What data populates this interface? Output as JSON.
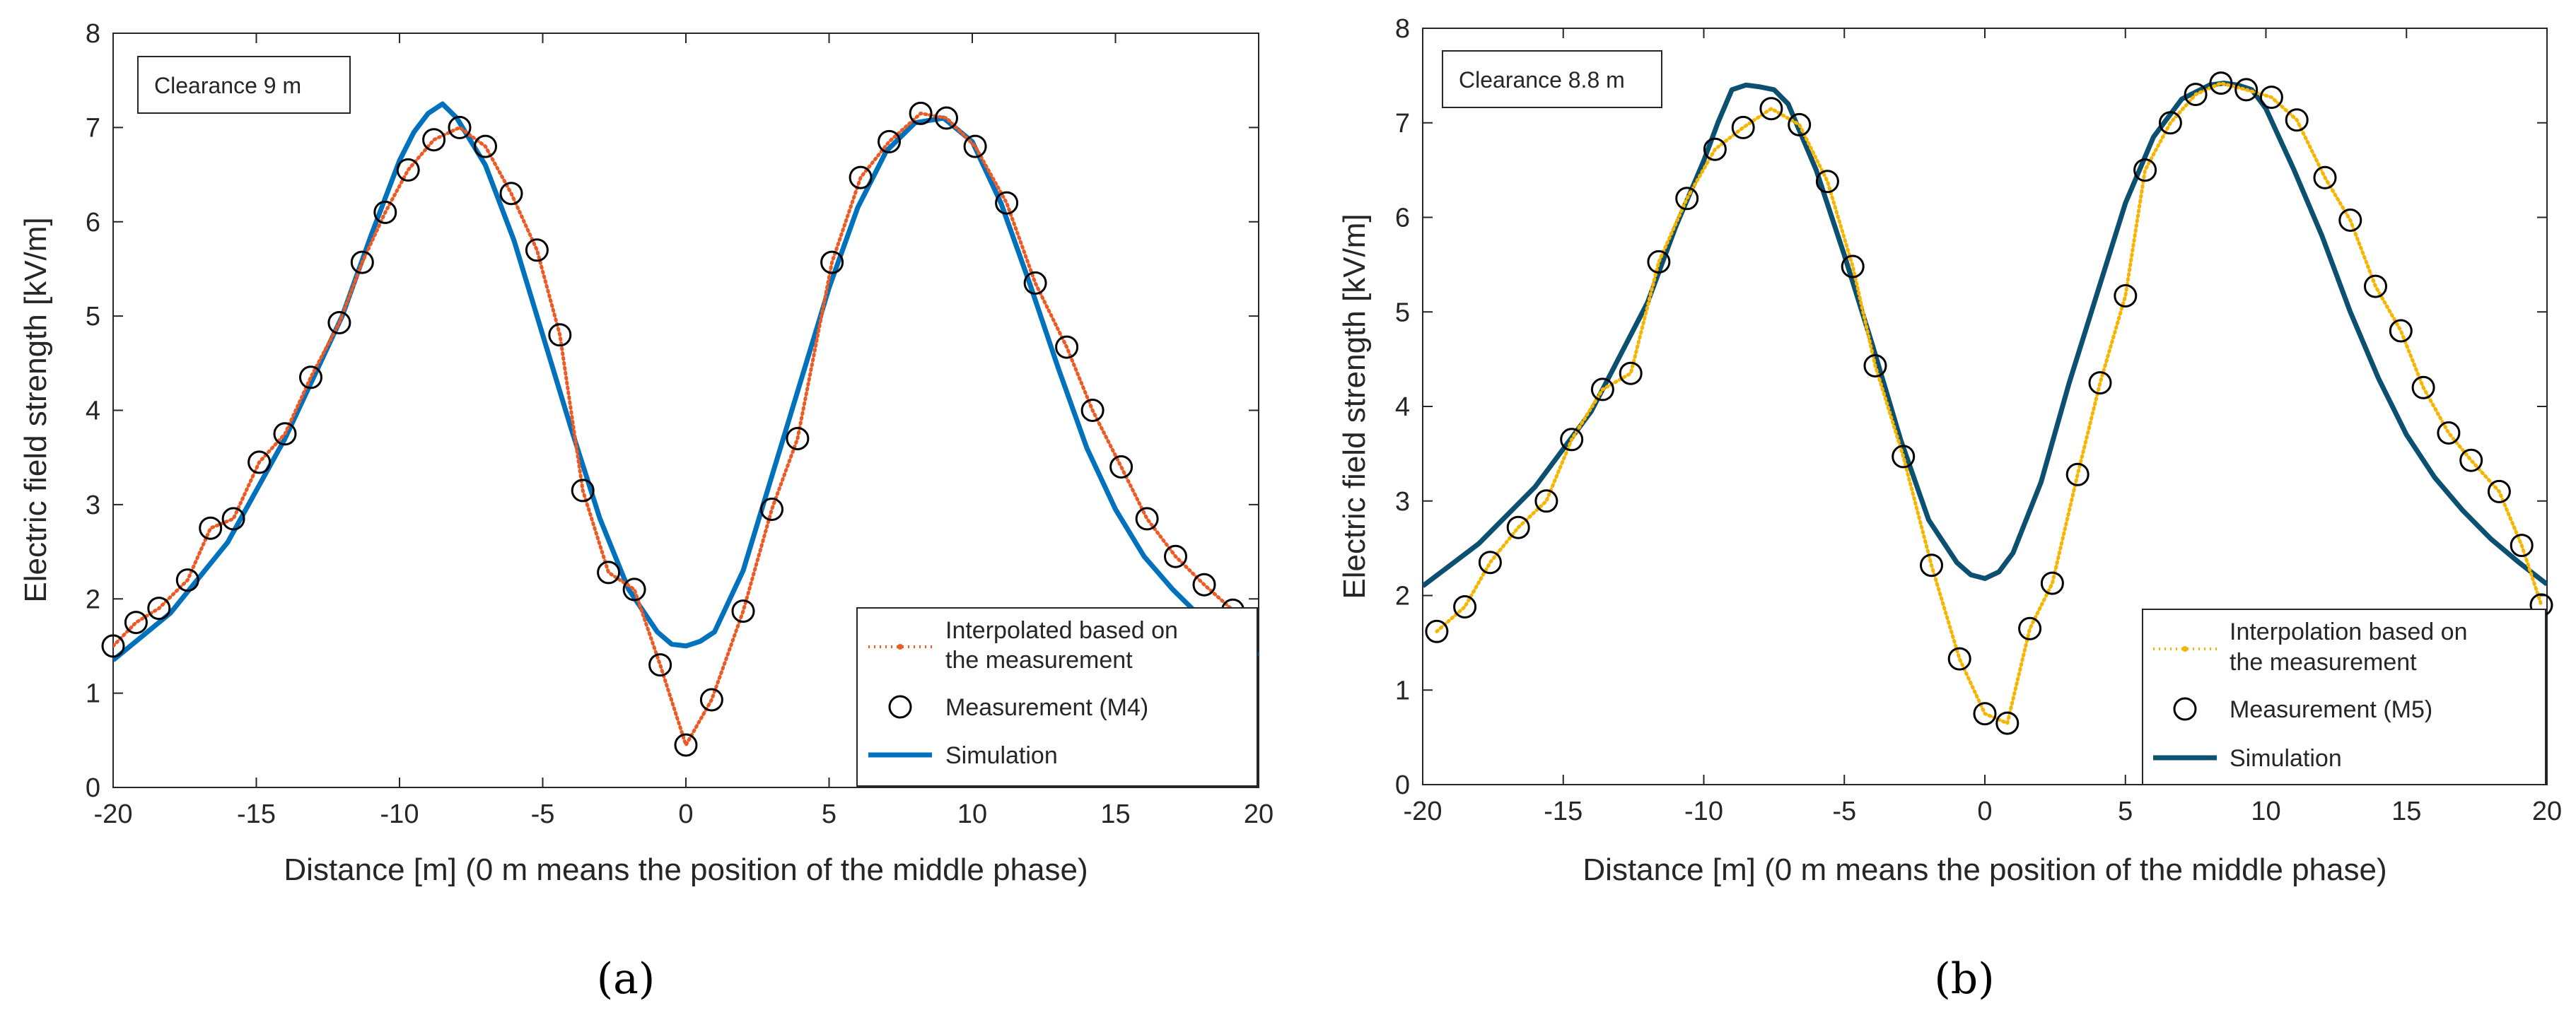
{
  "chart_data": [
    {
      "type": "line",
      "panel_label": "(a)",
      "annotation": "Clearance 9 m",
      "xlabel": "Distance [m] (0 m means the position of the middle phase)",
      "ylabel": "Electric field strength [kV/m]",
      "xlim": [
        -20,
        20
      ],
      "ylim": [
        0,
        8
      ],
      "xticks": [
        -20,
        -15,
        -10,
        -5,
        0,
        5,
        10,
        15,
        20
      ],
      "yticks": [
        0,
        1,
        2,
        3,
        4,
        5,
        6,
        7,
        8
      ],
      "grid": false,
      "legend_position": "bottom-right",
      "legend": [
        {
          "label_lines": [
            "Interpolated based on",
            "the measurement"
          ],
          "style": "dotted",
          "color": "#EE5A24"
        },
        {
          "label_lines": [
            "Measurement (M4)"
          ],
          "style": "circle",
          "color": "#000000"
        },
        {
          "label_lines": [
            "Simulation"
          ],
          "style": "solid",
          "color": "#0072BD"
        }
      ],
      "measurement": {
        "x": [
          -20,
          -19.2,
          -18.4,
          -17.4,
          -16.6,
          -15.8,
          -14.9,
          -14.0,
          -13.1,
          -12.1,
          -11.3,
          -10.5,
          -9.7,
          -8.8,
          -7.9,
          -7.0,
          -6.1,
          -5.2,
          -4.4,
          -3.6,
          -2.7,
          -1.8,
          -0.9,
          0,
          0.9,
          2.0,
          3.0,
          3.9,
          5.1,
          6.1,
          7.1,
          8.2,
          9.1,
          10.1,
          11.2,
          12.2,
          13.3,
          14.2,
          15.2,
          16.1,
          17.1,
          18.1,
          19.1
        ],
        "y": [
          1.5,
          1.75,
          1.9,
          2.2,
          2.75,
          2.85,
          3.45,
          3.75,
          4.35,
          4.93,
          5.57,
          6.1,
          6.55,
          6.87,
          7.0,
          6.8,
          6.3,
          5.7,
          4.8,
          3.15,
          2.28,
          2.1,
          1.3,
          0.45,
          0.93,
          1.87,
          2.95,
          3.7,
          5.57,
          6.47,
          6.85,
          7.15,
          7.1,
          6.8,
          6.2,
          5.35,
          4.67,
          4.0,
          3.4,
          2.85,
          2.45,
          2.15,
          1.88
        ]
      },
      "simulation": {
        "x": [
          -20,
          -18,
          -16,
          -14,
          -12,
          -11,
          -10,
          -9.5,
          -9,
          -8.5,
          -8,
          -7,
          -6,
          -5,
          -4,
          -3,
          -2,
          -1,
          -0.5,
          0,
          0.5,
          1,
          2,
          3,
          4,
          5,
          6,
          7,
          8,
          9,
          10,
          11,
          12,
          13,
          14,
          15,
          16,
          17,
          18,
          19,
          20
        ],
        "y": [
          1.35,
          1.85,
          2.6,
          3.7,
          5.0,
          5.85,
          6.65,
          6.95,
          7.15,
          7.25,
          7.1,
          6.6,
          5.8,
          4.8,
          3.8,
          2.85,
          2.1,
          1.65,
          1.52,
          1.5,
          1.55,
          1.65,
          2.3,
          3.3,
          4.3,
          5.3,
          6.15,
          6.75,
          7.05,
          7.1,
          6.85,
          6.2,
          5.35,
          4.45,
          3.6,
          2.95,
          2.45,
          2.1,
          1.8,
          1.55,
          1.4
        ]
      }
    },
    {
      "type": "line",
      "panel_label": "(b)",
      "annotation": "Clearance 8.8 m",
      "xlabel": "Distance [m] (0 m means the position of the middle phase)",
      "ylabel": "Electric field strength [kV/m]",
      "xlim": [
        -20,
        20
      ],
      "ylim": [
        0,
        8
      ],
      "xticks": [
        -20,
        -15,
        -10,
        -5,
        0,
        5,
        10,
        15,
        20
      ],
      "yticks": [
        0,
        1,
        2,
        3,
        4,
        5,
        6,
        7,
        8
      ],
      "grid": false,
      "legend_position": "bottom-right",
      "legend": [
        {
          "label_lines": [
            "Interpolation based on",
            "the measurement"
          ],
          "style": "dotted",
          "color": "#F7B500"
        },
        {
          "label_lines": [
            "Measurement (M5)"
          ],
          "style": "circle",
          "color": "#000000"
        },
        {
          "label_lines": [
            "Simulation"
          ],
          "style": "solid",
          "color": "#0B4F71"
        }
      ],
      "measurement": {
        "x": [
          -19.5,
          -18.5,
          -17.6,
          -16.6,
          -15.6,
          -14.7,
          -13.6,
          -12.6,
          -11.6,
          -10.6,
          -9.6,
          -8.6,
          -7.6,
          -6.6,
          -5.6,
          -4.7,
          -3.9,
          -2.9,
          -1.9,
          -0.9,
          0,
          0.8,
          1.6,
          2.4,
          3.3,
          4.1,
          5.0,
          5.7,
          6.6,
          7.5,
          8.4,
          9.3,
          10.2,
          11.1,
          12.1,
          13.0,
          13.9,
          14.8,
          15.6,
          16.5,
          17.3,
          18.3,
          19.1,
          19.8
        ],
        "y": [
          1.62,
          1.88,
          2.35,
          2.72,
          3.0,
          3.65,
          4.18,
          4.35,
          5.53,
          6.2,
          6.72,
          6.95,
          7.15,
          6.98,
          6.38,
          5.48,
          4.43,
          3.47,
          2.32,
          1.33,
          0.75,
          0.65,
          1.65,
          2.13,
          3.28,
          4.25,
          5.17,
          6.5,
          7.0,
          7.3,
          7.42,
          7.35,
          7.27,
          7.03,
          6.42,
          5.97,
          5.27,
          4.8,
          4.2,
          3.72,
          3.43,
          3.1,
          2.53,
          1.9
        ]
      },
      "simulation": {
        "x": [
          -20,
          -18,
          -16,
          -14,
          -12,
          -11,
          -10,
          -9.5,
          -9,
          -8.5,
          -8,
          -7.5,
          -7,
          -6,
          -5,
          -4,
          -3,
          -2,
          -1,
          -0.5,
          0,
          0.5,
          1,
          2,
          3,
          4,
          5,
          6,
          7,
          8,
          8.5,
          9,
          9.5,
          10,
          11,
          12,
          13,
          14,
          15,
          16,
          17,
          18,
          19,
          20
        ],
        "y": [
          2.1,
          2.55,
          3.15,
          3.95,
          5.1,
          5.9,
          6.6,
          7.0,
          7.35,
          7.4,
          7.38,
          7.35,
          7.2,
          6.5,
          5.6,
          4.65,
          3.65,
          2.8,
          2.35,
          2.22,
          2.18,
          2.25,
          2.45,
          3.2,
          4.25,
          5.2,
          6.15,
          6.85,
          7.25,
          7.4,
          7.42,
          7.4,
          7.35,
          7.15,
          6.5,
          5.8,
          5.0,
          4.3,
          3.7,
          3.25,
          2.9,
          2.6,
          2.35,
          2.12
        ]
      }
    }
  ]
}
